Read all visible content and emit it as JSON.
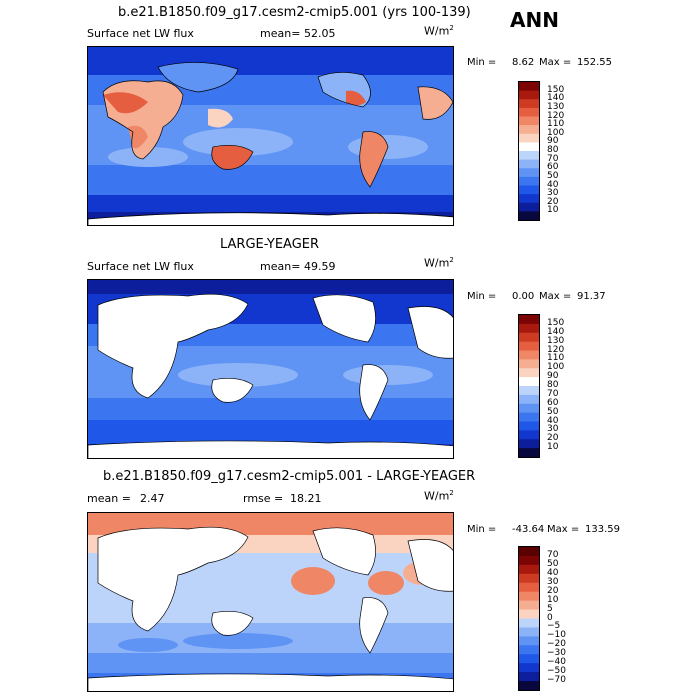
{
  "season": "ANN",
  "panels": [
    {
      "id": "test",
      "title": "b.e21.B1850.f09_g17.cesm2-cmip5.001 (yrs 100-139)",
      "variable": "Surface net LW flux",
      "stat1_label": "mean=",
      "stat1_value": "52.05",
      "stat2_label": "",
      "stat2_value": "",
      "units_base": "W/m",
      "units_exp": "2",
      "min_label": "Min =",
      "min_value": "8.62",
      "max_label": "Max =",
      "max_value": "152.55",
      "levels": [
        "150",
        "140",
        "130",
        "120",
        "110",
        "100",
        "90",
        "80",
        "70",
        "60",
        "50",
        "40",
        "30",
        "20",
        "10"
      ]
    },
    {
      "id": "ref",
      "title": "LARGE-YEAGER",
      "variable": "Surface net LW flux",
      "stat1_label": "mean=",
      "stat1_value": "49.59",
      "stat2_label": "",
      "stat2_value": "",
      "units_base": "W/m",
      "units_exp": "2",
      "min_label": "Min =",
      "min_value": "0.00",
      "max_label": "Max =",
      "max_value": "91.37",
      "levels": [
        "150",
        "140",
        "130",
        "120",
        "110",
        "100",
        "90",
        "80",
        "70",
        "60",
        "50",
        "40",
        "30",
        "20",
        "10"
      ]
    },
    {
      "id": "diff",
      "title": "b.e21.B1850.f09_g17.cesm2-cmip5.001 - LARGE-YEAGER",
      "variable": "",
      "stat1_label": "mean =",
      "stat1_value": "2.47",
      "stat2_label": "rmse =",
      "stat2_value": "18.21",
      "units_base": "W/m",
      "units_exp": "2",
      "min_label": "Min =",
      "min_value": "-43.64",
      "max_label": "Max =",
      "max_value": "133.59",
      "levels": [
        "70",
        "50",
        "40",
        "30",
        "20",
        "10",
        "5",
        "0",
        "−5",
        "−10",
        "−20",
        "−30",
        "−40",
        "−50",
        "−70"
      ]
    }
  ],
  "chart_data": [
    {
      "type": "heatmap",
      "title": "b.e21.B1850.f09_g17.cesm2-cmip5.001 (yrs 100-139)",
      "variable": "Surface net LW flux",
      "units": "W/m2",
      "mean": 52.05,
      "min": 8.62,
      "max": 152.55,
      "contour_levels": [
        10,
        20,
        30,
        40,
        50,
        60,
        70,
        80,
        90,
        100,
        110,
        120,
        130,
        140,
        150
      ],
      "colors": [
        "#08083f",
        "#0c1e9c",
        "#1237cf",
        "#1f57e8",
        "#3b75f0",
        "#5f93f4",
        "#8cb3f7",
        "#bcd3fa",
        "#ffffff",
        "#fbd3c1",
        "#f6ae93",
        "#ef8665",
        "#e45e3f",
        "#cc3b22",
        "#a8190e",
        "#7c0404"
      ]
    },
    {
      "type": "heatmap",
      "title": "LARGE-YEAGER",
      "variable": "Surface net LW flux",
      "units": "W/m2",
      "mean": 49.59,
      "min": 0.0,
      "max": 91.37,
      "contour_levels": [
        10,
        20,
        30,
        40,
        50,
        60,
        70,
        80,
        90,
        100,
        110,
        120,
        130,
        140,
        150
      ],
      "colors": [
        "#08083f",
        "#0c1e9c",
        "#1237cf",
        "#1f57e8",
        "#3b75f0",
        "#5f93f4",
        "#8cb3f7",
        "#bcd3fa",
        "#ffffff",
        "#fbd3c1",
        "#f6ae93",
        "#ef8665",
        "#e45e3f",
        "#cc3b22",
        "#a8190e",
        "#7c0404"
      ]
    },
    {
      "type": "heatmap",
      "title": "b.e21.B1850.f09_g17.cesm2-cmip5.001 - LARGE-YEAGER",
      "units": "W/m2",
      "mean": 2.47,
      "rmse": 18.21,
      "min": -43.64,
      "max": 133.59,
      "contour_levels": [
        -70,
        -50,
        -40,
        -30,
        -20,
        -10,
        -5,
        0,
        5,
        10,
        20,
        30,
        40,
        50,
        70
      ],
      "colors": [
        "#08083f",
        "#0c1e9c",
        "#1237cf",
        "#1f57e8",
        "#3b75f0",
        "#5f93f4",
        "#8cb3f7",
        "#bcd3fa",
        "#fbd3c1",
        "#f6ae93",
        "#ef8665",
        "#e45e3f",
        "#cc3b22",
        "#a8190e",
        "#7c0404",
        "#5a0000"
      ]
    }
  ]
}
